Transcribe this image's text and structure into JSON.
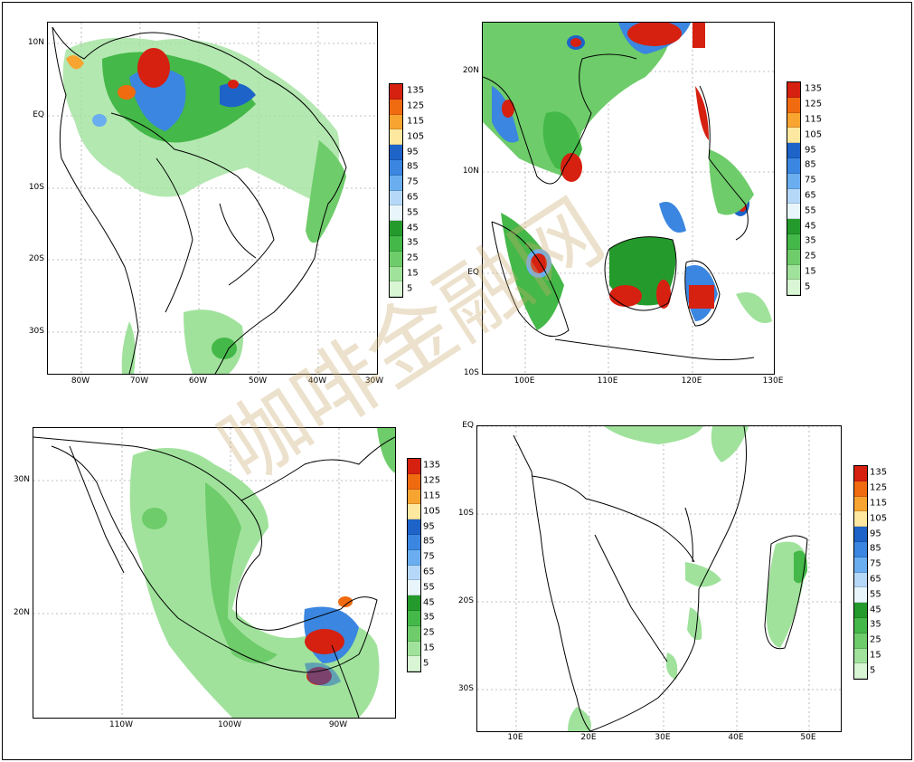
{
  "watermark": "咖啡金融网",
  "legend_levels": [
    "135",
    "125",
    "115",
    "105",
    "95",
    "85",
    "75",
    "65",
    "55",
    "45",
    "35",
    "25",
    "15",
    "5"
  ],
  "legend_colors": [
    "#d62010",
    "#f06a10",
    "#f8a430",
    "#fee8a0",
    "#1d63c8",
    "#3a86e0",
    "#6aaef0",
    "#b6d8f8",
    "#e8f6fc",
    "#249a2c",
    "#44b848",
    "#6ecc6a",
    "#a0e29c",
    "#d8f5d4"
  ],
  "panels": [
    {
      "id": "south-america",
      "y_ticks": [
        "10N",
        "EQ",
        "10S",
        "20S",
        "30S"
      ],
      "x_ticks": [
        "80W",
        "70W",
        "60W",
        "50W",
        "40W",
        "30W"
      ]
    },
    {
      "id": "southeast-asia",
      "y_ticks": [
        "20N",
        "10N",
        "EQ",
        "10S"
      ],
      "x_ticks": [
        "100E",
        "110E",
        "120E",
        "130E"
      ]
    },
    {
      "id": "mexico-central-america",
      "y_ticks": [
        "30N",
        "20N"
      ],
      "x_ticks": [
        "110W",
        "100W",
        "90W"
      ]
    },
    {
      "id": "southern-africa",
      "y_ticks": [
        "EQ",
        "10S",
        "20S",
        "30S"
      ],
      "x_ticks": [
        "10E",
        "20E",
        "30E",
        "40E",
        "50E"
      ]
    }
  ]
}
